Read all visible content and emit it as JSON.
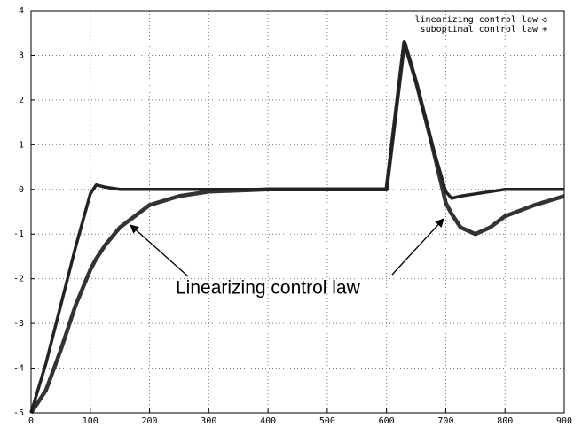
{
  "chart_data": {
    "type": "line",
    "x": [
      0,
      25,
      50,
      75,
      100,
      110,
      125,
      150,
      200,
      250,
      300,
      400,
      500,
      600,
      630,
      650,
      675,
      700,
      710,
      725,
      750,
      775,
      800,
      850,
      900
    ],
    "series": [
      {
        "name": "linearizing control law",
        "color": "#333333",
        "values": [
          -5,
          -4.5,
          -3.6,
          -2.6,
          -1.8,
          -1.55,
          -1.25,
          -0.85,
          -0.35,
          -0.15,
          -0.05,
          0,
          0,
          0,
          3.3,
          2.4,
          1.1,
          -0.3,
          -0.55,
          -0.85,
          -1.0,
          -0.85,
          -0.6,
          -0.35,
          -0.15
        ]
      },
      {
        "name": "suboptimal control law",
        "color": "#222222",
        "values": [
          -5,
          -3.9,
          -2.6,
          -1.3,
          -0.1,
          0.1,
          0.05,
          0,
          0,
          0,
          0,
          0,
          0,
          0,
          3.3,
          2.4,
          1.1,
          -0.05,
          -0.2,
          -0.15,
          -0.1,
          -0.05,
          0,
          0,
          0
        ]
      }
    ],
    "xlim": [
      0,
      900
    ],
    "xticks": [
      0,
      100,
      200,
      300,
      400,
      500,
      600,
      700,
      800,
      900
    ],
    "ylim": [
      -5,
      4
    ],
    "yticks": [
      -5,
      -4,
      -3,
      -2,
      -1,
      0,
      1,
      2,
      3,
      4
    ],
    "grid": true,
    "legend": "upper right",
    "annotation": "Linearizing control law"
  }
}
